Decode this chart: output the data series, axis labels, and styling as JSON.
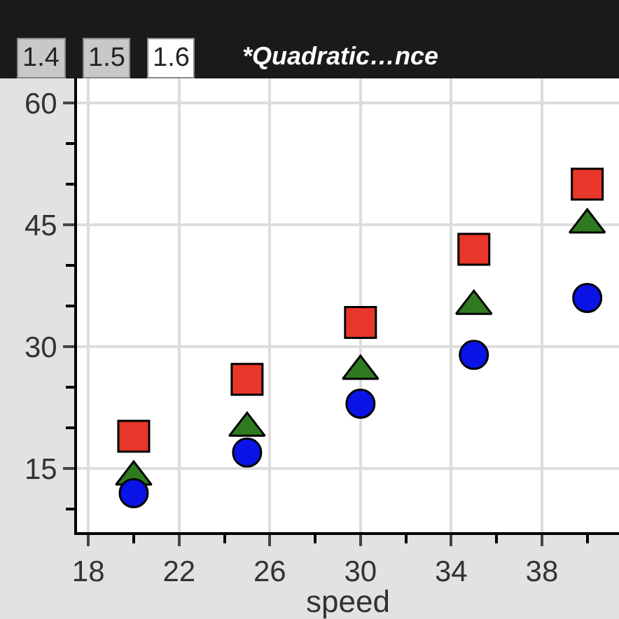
{
  "chart_data": {
    "type": "scatter",
    "title": "*Quadratic…nce",
    "annotations": [
      "1.4",
      "1.5",
      "1.6"
    ],
    "xlabel": "speed",
    "x": [
      20,
      25,
      30,
      35,
      40
    ],
    "series": [
      {
        "color": "#e8372a",
        "marker": "square",
        "values": [
          19,
          26,
          33,
          42,
          50
        ]
      },
      {
        "color": "#2f7a1f",
        "marker": "triangle",
        "values": [
          14,
          20,
          27,
          35,
          45
        ]
      },
      {
        "color": "#0a14e6",
        "marker": "circle",
        "values": [
          12,
          17,
          23,
          29,
          36
        ]
      }
    ],
    "xlim": [
      17.5,
      41.4
    ],
    "ylim": [
      7.2,
      63
    ],
    "xticks": [
      18,
      {
        "value": 20,
        "label": null
      },
      22,
      {
        "value": 24,
        "label": null
      },
      26,
      {
        "value": 28,
        "label": null
      },
      30,
      {
        "value": 32,
        "label": null
      },
      34,
      {
        "value": 36,
        "label": null
      },
      38,
      {
        "value": 40,
        "label": null
      }
    ],
    "yticks": [
      {
        "value": 10,
        "label": null
      },
      15,
      {
        "value": 20,
        "label": null
      },
      {
        "value": 25,
        "label": null
      },
      30,
      {
        "value": 35,
        "label": null
      },
      {
        "value": 40,
        "label": null
      },
      45,
      {
        "value": 50,
        "label": null
      },
      {
        "value": 55,
        "label": null
      },
      60
    ],
    "grid": true
  }
}
